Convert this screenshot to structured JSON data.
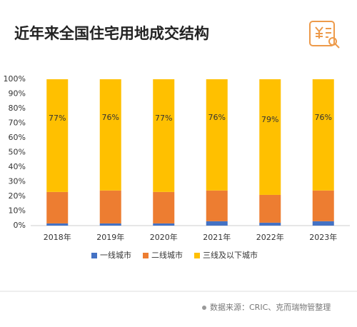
{
  "chart_data": {
    "type": "stacked_bar",
    "title": "近年来全国住宅用地成交结构",
    "categories": [
      "2018年",
      "2019年",
      "2020年",
      "2021年",
      "2022年",
      "2023年"
    ],
    "series": [
      {
        "name": "一线城市",
        "color": "#4472c4",
        "values": [
          1.5,
          1.5,
          1.5,
          3,
          2,
          3
        ]
      },
      {
        "name": "二线城市",
        "color": "#ed7d31",
        "values": [
          21.5,
          22.5,
          21.5,
          21,
          19,
          21
        ]
      },
      {
        "name": "三线及以下城市",
        "color": "#ffc000",
        "values": [
          77,
          76,
          77,
          76,
          79,
          76
        ],
        "value_labels": [
          "77%",
          "76%",
          "77%",
          "76%",
          "79%",
          "76%"
        ]
      }
    ],
    "ylim": [
      0,
      100
    ],
    "yticks": [
      {
        "value": 0,
        "label": "0%"
      },
      {
        "value": 10,
        "label": "10%"
      },
      {
        "value": 20,
        "label": "20%"
      },
      {
        "value": 30,
        "label": "30%"
      },
      {
        "value": 40,
        "label": "40%"
      },
      {
        "value": 50,
        "label": "50%"
      },
      {
        "value": 60,
        "label": "60%"
      },
      {
        "value": 70,
        "label": "70%"
      },
      {
        "value": 80,
        "label": "80%"
      },
      {
        "value": 90,
        "label": "90%"
      },
      {
        "value": 100,
        "label": "100%"
      }
    ],
    "grid": false,
    "legend": "bottom",
    "source": "数据来源：CRIC、克而瑞物管整理"
  }
}
